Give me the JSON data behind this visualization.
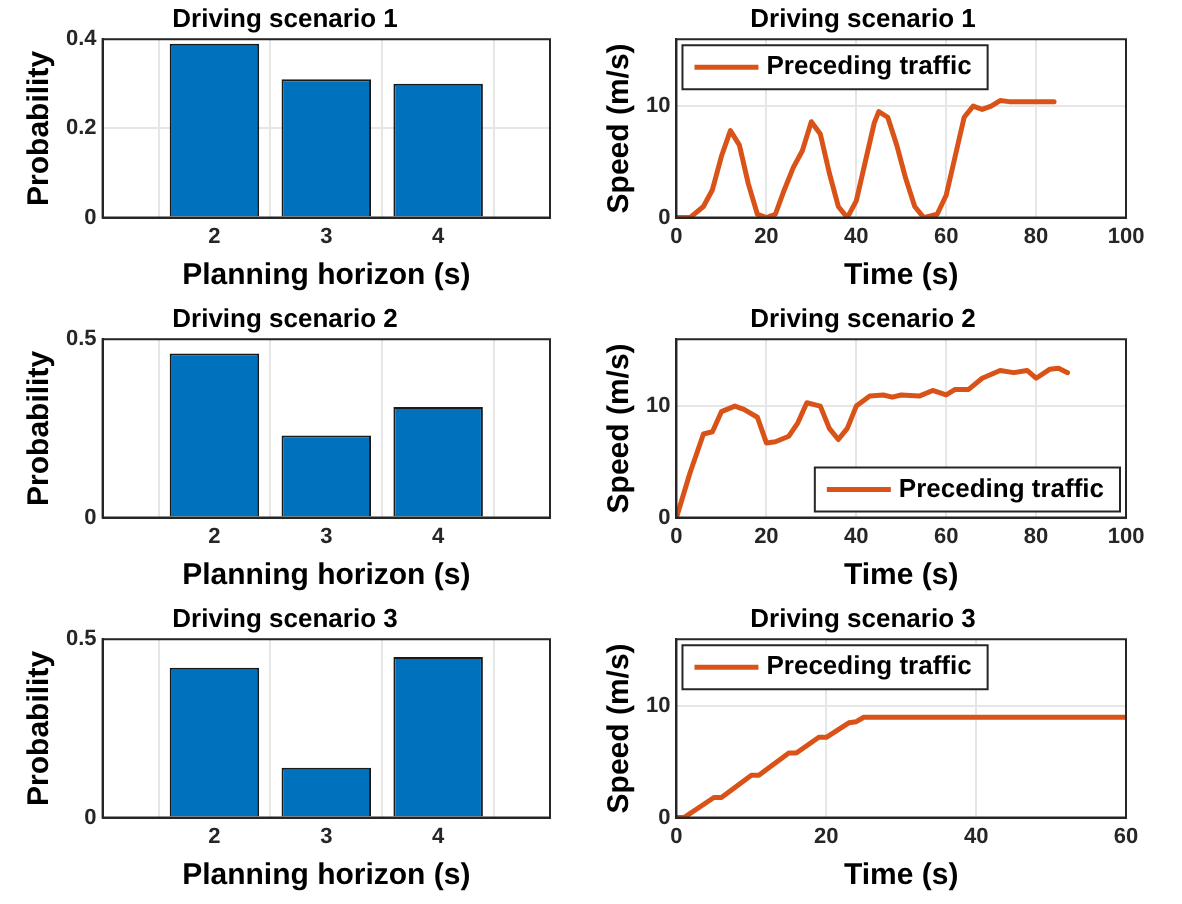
{
  "chart_data": [
    {
      "type": "bar",
      "title": "Driving scenario 1",
      "xlabel": "Planning horizon (s)",
      "ylabel": "Probability",
      "x": [
        2,
        3,
        4
      ],
      "values": [
        0.39,
        0.31,
        0.3
      ],
      "color": "#0072bd",
      "xlim": [
        1,
        5
      ],
      "xticks": [
        2,
        3,
        4
      ],
      "ylim": [
        0,
        0.4
      ],
      "yticks": [
        0,
        0.2,
        0.4
      ],
      "grid": true
    },
    {
      "type": "line",
      "title": "Driving scenario 1",
      "xlabel": "Time (s)",
      "ylabel": "Speed (m/s)",
      "x": [
        0,
        3,
        6,
        8,
        10,
        12,
        14,
        16,
        18,
        20,
        22,
        24,
        26,
        28,
        30,
        32,
        34,
        36,
        38,
        40,
        42,
        44,
        45,
        47,
        49,
        51,
        53,
        55,
        58,
        60,
        62,
        64,
        66,
        68,
        70,
        72,
        74,
        84
      ],
      "series": [
        {
          "name": "Preceding traffic",
          "color": "#d95319",
          "values": [
            0,
            0,
            1,
            2.5,
            5.5,
            7.8,
            6.5,
            3,
            0.3,
            0,
            0.3,
            2.5,
            4.5,
            6,
            8.6,
            7.5,
            4,
            1,
            0,
            1.5,
            5,
            8.5,
            9.5,
            9,
            6.5,
            3.5,
            1,
            0,
            0.3,
            2,
            5.5,
            9,
            10,
            9.7,
            10,
            10.5,
            10.4,
            10.4
          ]
        }
      ],
      "xlim": [
        0,
        100
      ],
      "xticks": [
        0,
        20,
        40,
        60,
        80,
        100
      ],
      "ylim": [
        0,
        16
      ],
      "yticks": [
        0,
        10
      ],
      "grid": true,
      "legend": "top left"
    },
    {
      "type": "bar",
      "title": "Driving scenario 2",
      "xlabel": "Planning horizon (s)",
      "ylabel": "Probability",
      "x": [
        2,
        3,
        4
      ],
      "values": [
        0.46,
        0.23,
        0.31
      ],
      "color": "#0072bd",
      "xlim": [
        1,
        5
      ],
      "xticks": [
        2,
        3,
        4
      ],
      "ylim": [
        0,
        0.5
      ],
      "yticks": [
        0,
        0.5
      ],
      "grid": true
    },
    {
      "type": "line",
      "title": "Driving scenario 2",
      "xlabel": "Time (s)",
      "ylabel": "Speed (m/s)",
      "x": [
        0,
        3,
        6,
        8,
        10,
        13,
        15,
        18,
        20,
        22,
        25,
        27,
        29,
        32,
        34,
        36,
        38,
        40,
        43,
        46,
        48,
        50,
        54,
        57,
        60,
        62,
        65,
        68,
        72,
        75,
        78,
        80,
        83,
        85,
        87
      ],
      "series": [
        {
          "name": "Preceding traffic",
          "color": "#d95319",
          "values": [
            0,
            4,
            7.5,
            7.7,
            9.5,
            10,
            9.7,
            9,
            6.7,
            6.8,
            7.3,
            8.5,
            10.3,
            10,
            8,
            7,
            8,
            10,
            10.9,
            11,
            10.8,
            11,
            10.9,
            11.4,
            11,
            11.5,
            11.5,
            12.5,
            13.2,
            13,
            13.2,
            12.5,
            13.3,
            13.4,
            13
          ]
        }
      ],
      "xlim": [
        0,
        100
      ],
      "xticks": [
        0,
        20,
        40,
        60,
        80,
        100
      ],
      "ylim": [
        0,
        16
      ],
      "yticks": [
        0,
        10
      ],
      "grid": true,
      "legend": "bottom right"
    },
    {
      "type": "bar",
      "title": "Driving scenario 3",
      "xlabel": "Planning horizon (s)",
      "ylabel": "Probability",
      "x": [
        2,
        3,
        4
      ],
      "values": [
        0.42,
        0.14,
        0.45
      ],
      "color": "#0072bd",
      "xlim": [
        1,
        5
      ],
      "xticks": [
        2,
        3,
        4
      ],
      "ylim": [
        0,
        0.5
      ],
      "yticks": [
        0,
        0.5
      ],
      "grid": true
    },
    {
      "type": "line",
      "title": "Driving scenario 3",
      "xlabel": "Time (s)",
      "ylabel": "Speed (m/s)",
      "x": [
        0,
        1,
        5,
        6,
        10,
        11,
        15,
        16,
        19,
        20,
        23,
        24,
        25,
        60
      ],
      "series": [
        {
          "name": "Preceding traffic",
          "color": "#d95319",
          "values": [
            0,
            0,
            1.8,
            1.8,
            3.8,
            3.8,
            5.8,
            5.8,
            7.2,
            7.2,
            8.5,
            8.6,
            9,
            9
          ]
        }
      ],
      "xlim": [
        0,
        60
      ],
      "xticks": [
        0,
        20,
        40,
        60
      ],
      "ylim": [
        0,
        16
      ],
      "yticks": [
        0,
        10
      ],
      "grid": true,
      "legend": "top left"
    }
  ]
}
